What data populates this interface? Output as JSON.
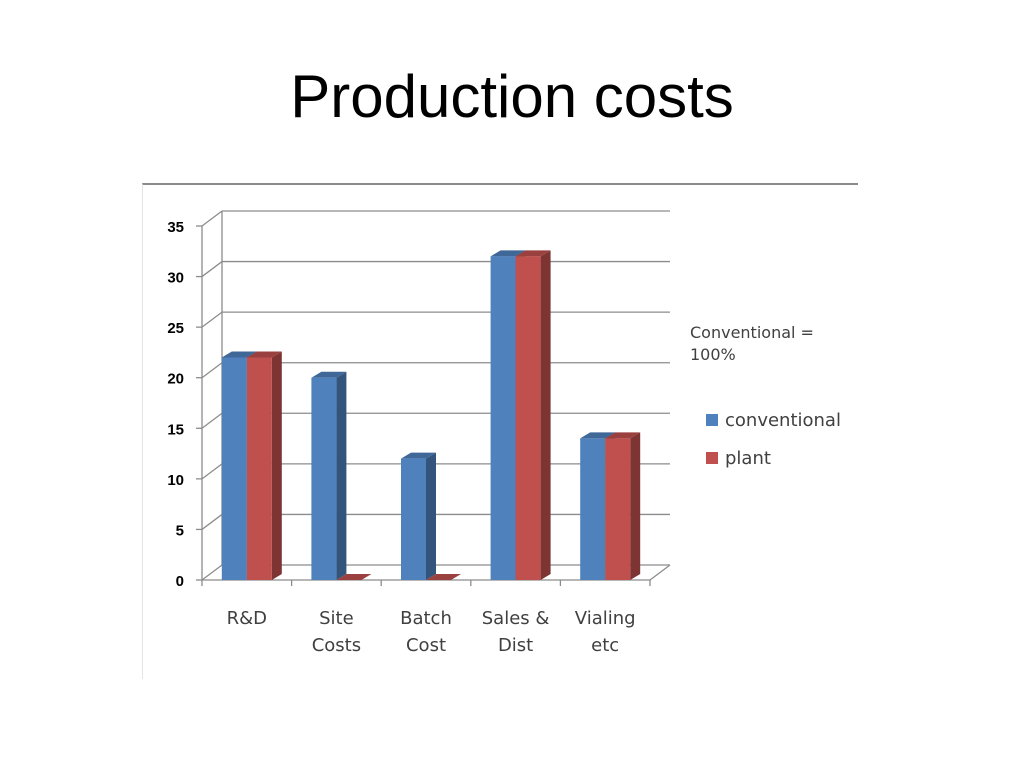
{
  "slide": {
    "title": "Production costs"
  },
  "legend_note": "Conventional = 100%",
  "colors": {
    "conventional": "#4f81bd",
    "plant": "#c0504d",
    "gridline": "#8c8c8c",
    "axis_text": "#000000"
  },
  "chart_data": {
    "type": "bar",
    "title": "",
    "xlabel": "",
    "ylabel": "",
    "categories": [
      [
        "R&D"
      ],
      [
        "Site",
        "Costs"
      ],
      [
        "Batch",
        "Cost"
      ],
      [
        "Sales &",
        "Dist"
      ],
      [
        "Vialing",
        "etc"
      ]
    ],
    "series": [
      {
        "name": "conventional",
        "values": [
          22,
          20,
          12,
          32,
          14
        ]
      },
      {
        "name": "plant",
        "values": [
          22,
          0,
          0,
          32,
          14
        ]
      }
    ],
    "ylim": [
      0,
      35
    ],
    "yticks": [
      "0",
      "5",
      "10",
      "15",
      "20",
      "25",
      "30",
      "35"
    ],
    "grid": true,
    "legend_position": "right",
    "style": "3d-clustered-column"
  }
}
